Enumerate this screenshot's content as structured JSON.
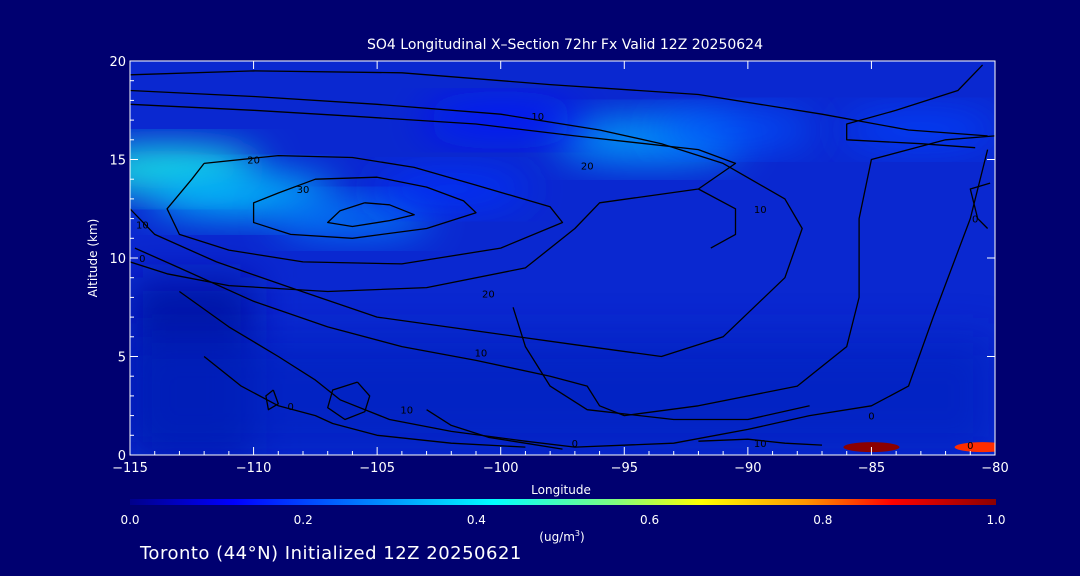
{
  "chart_data": {
    "type": "heatmap",
    "title": "SO4 Longitudinal X–Section 72hr  Fx Valid 12Z 20250624",
    "xlabel": "Longitude",
    "ylabel": "Altitude (km)",
    "xlim": [
      -115,
      -80
    ],
    "ylim": [
      0,
      20
    ],
    "x_ticks": [
      -115,
      -110,
      -105,
      -100,
      -95,
      -90,
      -85,
      -80
    ],
    "x_tick_labels": [
      "−115",
      "−110",
      "−105",
      "−100",
      "−95",
      "−90",
      "−85",
      "−80"
    ],
    "y_ticks": [
      0,
      5,
      10,
      15,
      20
    ],
    "y_tick_labels": [
      "0",
      "5",
      "10",
      "15",
      "20"
    ],
    "colorbar": {
      "min": 0.0,
      "max": 1.0,
      "ticks": [
        0.0,
        0.2,
        0.4,
        0.6,
        0.8,
        1.0
      ],
      "tick_labels": [
        "0.0",
        "0.2",
        "0.4",
        "0.6",
        "0.8",
        "1.0"
      ],
      "unit_label": "(ug/m",
      "unit_superscript": "3",
      "unit_suffix": ")"
    },
    "colors": {
      "background": "#000070",
      "low": "#00008b",
      "mid": "#00ffff",
      "high": "#ffff00",
      "max": "#8b0000",
      "contour": "#000000"
    },
    "field_blobs": [
      {
        "lon": -113.5,
        "alt": 14.5,
        "value": 0.45
      },
      {
        "lon": -110.5,
        "alt": 13.2,
        "value": 0.35
      },
      {
        "lon": -106.0,
        "alt": 12.0,
        "value": 0.28
      },
      {
        "lon": -102.0,
        "alt": 13.5,
        "value": 0.18
      },
      {
        "lon": -94.0,
        "alt": 16.0,
        "value": 0.32
      },
      {
        "lon": -90.5,
        "alt": 16.5,
        "value": 0.22
      },
      {
        "lon": -83.0,
        "alt": 16.5,
        "value": 0.2
      },
      {
        "lon": -100.0,
        "alt": 17.0,
        "value": 0.15
      },
      {
        "lon": -85.0,
        "alt": 0.4,
        "value": 1.0
      },
      {
        "lon": -80.5,
        "alt": 0.4,
        "value": 0.85
      }
    ],
    "contour_labels": [
      {
        "lon": -98.5,
        "alt": 17.2,
        "text": "10"
      },
      {
        "lon": -110.0,
        "alt": 15.0,
        "text": "20"
      },
      {
        "lon": -96.5,
        "alt": 14.7,
        "text": "20"
      },
      {
        "lon": -108.0,
        "alt": 13.5,
        "text": "30"
      },
      {
        "lon": -114.5,
        "alt": 11.7,
        "text": "10"
      },
      {
        "lon": -114.5,
        "alt": 10.0,
        "text": "0"
      },
      {
        "lon": -100.5,
        "alt": 8.2,
        "text": "20"
      },
      {
        "lon": -100.8,
        "alt": 5.2,
        "text": "10"
      },
      {
        "lon": -108.5,
        "alt": 2.5,
        "text": "0"
      },
      {
        "lon": -103.8,
        "alt": 2.3,
        "text": "10"
      },
      {
        "lon": -97.0,
        "alt": 0.6,
        "text": "0"
      },
      {
        "lon": -89.5,
        "alt": 0.6,
        "text": "10"
      },
      {
        "lon": -89.5,
        "alt": 12.5,
        "text": "10"
      },
      {
        "lon": -85.0,
        "alt": 2.0,
        "text": "0"
      },
      {
        "lon": -81.0,
        "alt": 0.5,
        "text": "0"
      },
      {
        "lon": -80.8,
        "alt": 12.0,
        "text": "0"
      }
    ],
    "contours": [
      [
        [
          -105.5,
          12.8
        ],
        [
          -104.5,
          12.7
        ],
        [
          -103.5,
          12.2
        ],
        [
          -104.5,
          11.9
        ],
        [
          -106,
          11.6
        ],
        [
          -107,
          11.8
        ],
        [
          -106.5,
          12.4
        ],
        [
          -105.5,
          12.8
        ]
      ],
      [
        [
          -109,
          13.3
        ],
        [
          -107.5,
          14.0
        ],
        [
          -105,
          14.1
        ],
        [
          -103,
          13.6
        ],
        [
          -101.5,
          12.9
        ],
        [
          -101,
          12.3
        ],
        [
          -103,
          11.5
        ],
        [
          -106,
          11.0
        ],
        [
          -108.5,
          11.2
        ],
        [
          -110,
          11.8
        ],
        [
          -110,
          12.8
        ],
        [
          -109,
          13.3
        ]
      ],
      [
        [
          -112,
          14.8
        ],
        [
          -109,
          15.2
        ],
        [
          -106,
          15.1
        ],
        [
          -103.5,
          14.6
        ],
        [
          -101,
          13.7
        ],
        [
          -98,
          12.6
        ],
        [
          -97.5,
          11.8
        ],
        [
          -100,
          10.5
        ],
        [
          -104,
          9.7
        ],
        [
          -108,
          9.8
        ],
        [
          -111,
          10.4
        ],
        [
          -113,
          11.2
        ],
        [
          -113.5,
          12.5
        ],
        [
          -112.5,
          14.0
        ],
        [
          -112,
          14.8
        ]
      ],
      [
        [
          -115,
          19.3
        ],
        [
          -110,
          19.5
        ],
        [
          -104,
          19.4
        ],
        [
          -98,
          18.8
        ],
        [
          -92,
          18.3
        ],
        [
          -87,
          17.3
        ],
        [
          -83.5,
          16.5
        ],
        [
          -80.3,
          16.2
        ]
      ],
      [
        [
          -115,
          17.8
        ],
        [
          -110,
          17.5
        ],
        [
          -106,
          17.2
        ],
        [
          -101,
          16.8
        ],
        [
          -97,
          16.2
        ],
        [
          -92,
          15.5
        ],
        [
          -90.5,
          14.8
        ],
        [
          -92,
          13.5
        ],
        [
          -96,
          12.8
        ],
        [
          -97,
          11.5
        ],
        [
          -99,
          9.5
        ],
        [
          -103,
          8.5
        ],
        [
          -107,
          8.3
        ],
        [
          -111,
          8.6
        ],
        [
          -113.5,
          9.2
        ],
        [
          -115,
          9.8
        ]
      ],
      [
        [
          -115,
          12.5
        ],
        [
          -114,
          11.2
        ],
        [
          -111.5,
          9.8
        ],
        [
          -108.5,
          8.5
        ],
        [
          -105,
          7.0
        ],
        [
          -101,
          6.3
        ],
        [
          -97,
          5.6
        ],
        [
          -93.5,
          5.0
        ],
        [
          -91,
          6.0
        ],
        [
          -88.5,
          9.0
        ],
        [
          -87.8,
          11.5
        ],
        [
          -88.5,
          13.0
        ],
        [
          -91,
          14.8
        ],
        [
          -93.5,
          15.8
        ],
        [
          -96,
          16.5
        ],
        [
          -100,
          17.3
        ],
        [
          -105,
          17.8
        ],
        [
          -110,
          18.2
        ],
        [
          -115,
          18.5
        ]
      ],
      [
        [
          -114.8,
          10.5
        ],
        [
          -113,
          9.5
        ],
        [
          -110,
          7.8
        ],
        [
          -107,
          6.5
        ],
        [
          -104,
          5.5
        ],
        [
          -101,
          4.8
        ],
        [
          -98,
          4.0
        ],
        [
          -96.5,
          3.5
        ],
        [
          -96,
          2.5
        ],
        [
          -95,
          2.0
        ],
        [
          -92,
          2.5
        ],
        [
          -88,
          3.5
        ],
        [
          -86,
          5.5
        ],
        [
          -85.5,
          8.0
        ],
        [
          -85.5,
          12.0
        ],
        [
          -85,
          15.0
        ],
        [
          -82,
          16.0
        ],
        [
          -80,
          16.2
        ]
      ],
      [
        [
          -113,
          8.3
        ],
        [
          -111,
          6.5
        ],
        [
          -109,
          5.0
        ],
        [
          -107.5,
          3.8
        ],
        [
          -106.5,
          2.8
        ],
        [
          -104.5,
          1.8
        ],
        [
          -102,
          1.2
        ],
        [
          -99,
          0.7
        ],
        [
          -97,
          0.4
        ],
        [
          -93,
          0.6
        ],
        [
          -90,
          1.3
        ],
        [
          -87.5,
          2.0
        ],
        [
          -85,
          2.5
        ],
        [
          -83.5,
          3.5
        ],
        [
          -82.5,
          7.0
        ],
        [
          -81,
          12.0
        ],
        [
          -80.3,
          15.5
        ]
      ],
      [
        [
          -112,
          5.0
        ],
        [
          -110.5,
          3.5
        ],
        [
          -109,
          2.5
        ],
        [
          -107.5,
          2.0
        ],
        [
          -106.8,
          1.6
        ],
        [
          -105,
          1.0
        ],
        [
          -102,
          0.6
        ],
        [
          -99,
          0.4
        ]
      ],
      [
        [
          -105.8,
          3.7
        ],
        [
          -105.3,
          3.0
        ],
        [
          -105.5,
          2.2
        ],
        [
          -106.3,
          1.8
        ],
        [
          -107,
          2.4
        ],
        [
          -106.8,
          3.3
        ],
        [
          -105.8,
          3.7
        ]
      ],
      [
        [
          -109.2,
          3.3
        ],
        [
          -109.0,
          2.6
        ],
        [
          -109.4,
          2.3
        ],
        [
          -109.5,
          3.0
        ],
        [
          -109.2,
          3.3
        ]
      ],
      [
        [
          -103,
          2.3
        ],
        [
          -102,
          1.5
        ],
        [
          -100.5,
          0.9
        ],
        [
          -99,
          0.6
        ],
        [
          -97.5,
          0.3
        ]
      ],
      [
        [
          -99.5,
          7.5
        ],
        [
          -99,
          5.5
        ],
        [
          -98,
          3.5
        ],
        [
          -96.5,
          2.3
        ],
        [
          -93,
          1.8
        ],
        [
          -90,
          1.8
        ],
        [
          -87.5,
          2.5
        ]
      ],
      [
        [
          -92,
          0.7
        ],
        [
          -90,
          0.8
        ],
        [
          -88.5,
          0.6
        ],
        [
          -87,
          0.5
        ]
      ],
      [
        [
          -80.5,
          19.8
        ],
        [
          -81.5,
          18.5
        ],
        [
          -84,
          17.5
        ],
        [
          -86,
          16.8
        ],
        [
          -86,
          16.0
        ],
        [
          -83,
          15.8
        ],
        [
          -80.8,
          15.6
        ]
      ],
      [
        [
          -80.2,
          13.8
        ],
        [
          -81,
          13.5
        ],
        [
          -80.7,
          12.0
        ],
        [
          -80.3,
          11.5
        ]
      ],
      [
        [
          -92,
          13.5
        ],
        [
          -90.5,
          12.5
        ],
        [
          -90.5,
          11.2
        ],
        [
          -91.5,
          10.5
        ]
      ]
    ]
  },
  "footer": {
    "station_label": "Toronto (44°N) Initialized 12Z 20250621"
  }
}
